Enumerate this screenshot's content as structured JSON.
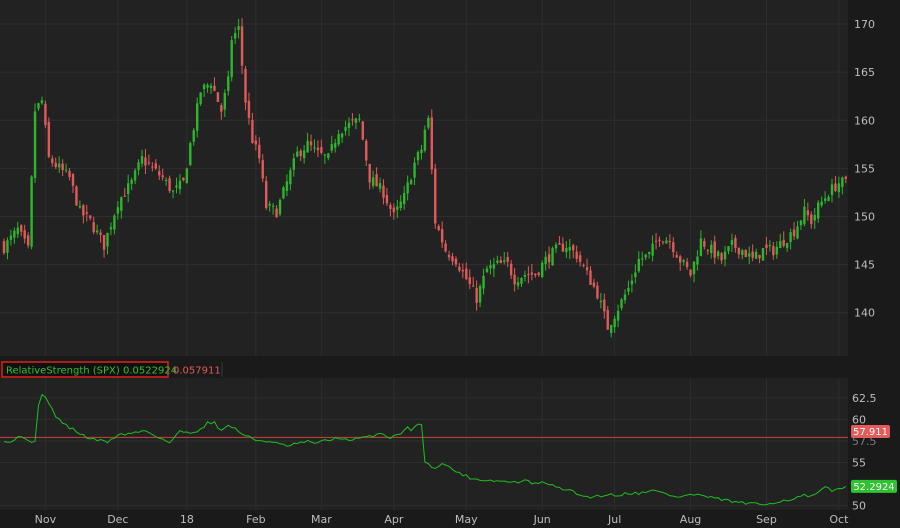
{
  "colors": {
    "background": "#1a1a1a",
    "plot_bg": "#222222",
    "grid": "#2e2e2e",
    "axis_text": "#bdbdbd",
    "up": "#2db52d",
    "down": "#e05a5a",
    "study_line": "#1fbf1f",
    "ref_line": "#c9433f",
    "header_border": "#e0201c"
  },
  "chart_data": [
    {
      "type": "candlestick",
      "ylim": [
        135.5,
        172.5
      ],
      "y_ticks": [
        "140",
        "145",
        "150",
        "155",
        "160",
        "165",
        "170"
      ],
      "y_tick_values": [
        140,
        145,
        150,
        155,
        160,
        165,
        170
      ],
      "x_ticks": [
        "Nov",
        "Dec",
        "18",
        "Feb",
        "Mar",
        "Apr",
        "May",
        "Jun",
        "Jul",
        "Aug",
        "Sep",
        "Oct"
      ],
      "x_tick_index": [
        12,
        33,
        53,
        73,
        92,
        113,
        134,
        156,
        177,
        199,
        221,
        242
      ],
      "anchors": [
        [
          0,
          146.8
        ],
        [
          4,
          148.6
        ],
        [
          7,
          146.5
        ],
        [
          9,
          161
        ],
        [
          11,
          162
        ],
        [
          13,
          156
        ],
        [
          16,
          155
        ],
        [
          19,
          154
        ],
        [
          22,
          150.5
        ],
        [
          25,
          149.5
        ],
        [
          29,
          147
        ],
        [
          33,
          151.5
        ],
        [
          37,
          153.5
        ],
        [
          40,
          156
        ],
        [
          43,
          155
        ],
        [
          46,
          154
        ],
        [
          49,
          152.5
        ],
        [
          52,
          153.5
        ],
        [
          54,
          157.5
        ],
        [
          57,
          163
        ],
        [
          60,
          164
        ],
        [
          63,
          161
        ],
        [
          65,
          164
        ],
        [
          66,
          168.5
        ],
        [
          68,
          169.5
        ],
        [
          70,
          162
        ],
        [
          72,
          158
        ],
        [
          74,
          156
        ],
        [
          76,
          151
        ],
        [
          79,
          150.5
        ],
        [
          82,
          153.5
        ],
        [
          85,
          156.5
        ],
        [
          88,
          157.5
        ],
        [
          91,
          156.5
        ],
        [
          94,
          156
        ],
        [
          97,
          159
        ],
        [
          100,
          159.5
        ],
        [
          103,
          160
        ],
        [
          106,
          154
        ],
        [
          110,
          152.5
        ],
        [
          113,
          150
        ],
        [
          116,
          152
        ],
        [
          119,
          155.5
        ],
        [
          121,
          157
        ],
        [
          122,
          159
        ],
        [
          123,
          160
        ],
        [
          125,
          149.5
        ],
        [
          128,
          146.5
        ],
        [
          131,
          145.5
        ],
        [
          134,
          143.5
        ],
        [
          137,
          141.5
        ],
        [
          140,
          144.5
        ],
        [
          143,
          145
        ],
        [
          146,
          145
        ],
        [
          148,
          143.5
        ],
        [
          151,
          144
        ],
        [
          154,
          144
        ],
        [
          157,
          145.5
        ],
        [
          160,
          146.5
        ],
        [
          163,
          147
        ],
        [
          166,
          146
        ],
        [
          169,
          144
        ],
        [
          172,
          142
        ],
        [
          175,
          138.5
        ],
        [
          178,
          140.5
        ],
        [
          181,
          142.5
        ],
        [
          184,
          145.5
        ],
        [
          187,
          146
        ],
        [
          190,
          148
        ],
        [
          193,
          147.5
        ],
        [
          196,
          145.5
        ],
        [
          199,
          144
        ],
        [
          202,
          147.5
        ],
        [
          205,
          146.5
        ],
        [
          208,
          145.5
        ],
        [
          211,
          147
        ],
        [
          214,
          146.5
        ],
        [
          217,
          145.5
        ],
        [
          220,
          146.5
        ],
        [
          223,
          146.5
        ],
        [
          226,
          147.5
        ],
        [
          229,
          148.5
        ],
        [
          232,
          150.5
        ],
        [
          234,
          149.5
        ],
        [
          236,
          151
        ],
        [
          239,
          152.5
        ],
        [
          242,
          153.5
        ],
        [
          244,
          153.5
        ]
      ]
    },
    {
      "type": "line",
      "name": "RelativeStrength (SPX)",
      "value": "0.0522924",
      "ref_value": "0.057911",
      "ylim": [
        49.5,
        64.8
      ],
      "y_ticks": [
        "50",
        "55",
        "57.5",
        "60",
        "62.5"
      ],
      "y_tick_values": [
        50,
        55,
        57.5,
        60,
        62.5
      ],
      "ref_line": 57.911,
      "last_label": "52.2924",
      "ref_label": "57.911",
      "anchors": [
        [
          0,
          57.6
        ],
        [
          2,
          57.4
        ],
        [
          4,
          58.0
        ],
        [
          7,
          57.7
        ],
        [
          9,
          57.3
        ],
        [
          10,
          61.5
        ],
        [
          11,
          63
        ],
        [
          13,
          62
        ],
        [
          15,
          60.3
        ],
        [
          18,
          59.3
        ],
        [
          21,
          58.6
        ],
        [
          24,
          57.9
        ],
        [
          27,
          57.6
        ],
        [
          30,
          57.4
        ],
        [
          33,
          58.2
        ],
        [
          37,
          58.4
        ],
        [
          41,
          58.7
        ],
        [
          45,
          57.9
        ],
        [
          48,
          57.3
        ],
        [
          51,
          58.6
        ],
        [
          54,
          58.5
        ],
        [
          57,
          58.8
        ],
        [
          59,
          59.6
        ],
        [
          61,
          59.7
        ],
        [
          63,
          58.6
        ],
        [
          65,
          59.4
        ],
        [
          67,
          58.9
        ],
        [
          70,
          58.1
        ],
        [
          73,
          57.6
        ],
        [
          76,
          57.5
        ],
        [
          79,
          57.2
        ],
        [
          82,
          56.9
        ],
        [
          85,
          57.2
        ],
        [
          88,
          57.4
        ],
        [
          91,
          57.3
        ],
        [
          94,
          57.6
        ],
        [
          97,
          57.9
        ],
        [
          100,
          57.5
        ],
        [
          103,
          57.8
        ],
        [
          106,
          58.0
        ],
        [
          109,
          58.4
        ],
        [
          112,
          57.9
        ],
        [
          114,
          58.3
        ],
        [
          116,
          58.6
        ],
        [
          117,
          59.1
        ],
        [
          118,
          58.8
        ],
        [
          119,
          59.3
        ],
        [
          121,
          59.4
        ],
        [
          122,
          55.2
        ],
        [
          124,
          54.3
        ],
        [
          127,
          54.9
        ],
        [
          130,
          54.2
        ],
        [
          133,
          53.6
        ],
        [
          136,
          53.1
        ],
        [
          139,
          53.0
        ],
        [
          142,
          52.9
        ],
        [
          145,
          52.8
        ],
        [
          148,
          52.7
        ],
        [
          151,
          52.9
        ],
        [
          154,
          52.5
        ],
        [
          157,
          52.7
        ],
        [
          160,
          52.1
        ],
        [
          163,
          51.9
        ],
        [
          166,
          51.4
        ],
        [
          169,
          51.0
        ],
        [
          172,
          51.1
        ],
        [
          175,
          51.3
        ],
        [
          178,
          51.2
        ],
        [
          181,
          51.5
        ],
        [
          184,
          51.4
        ],
        [
          187,
          51.8
        ],
        [
          190,
          51.6
        ],
        [
          193,
          51.2
        ],
        [
          196,
          51.0
        ],
        [
          199,
          51.3
        ],
        [
          202,
          51.2
        ],
        [
          205,
          50.9
        ],
        [
          208,
          50.7
        ],
        [
          211,
          50.5
        ],
        [
          214,
          50.3
        ],
        [
          217,
          50.2
        ],
        [
          220,
          50.1
        ],
        [
          223,
          50.4
        ],
        [
          226,
          50.6
        ],
        [
          229,
          50.8
        ],
        [
          232,
          51.2
        ],
        [
          234,
          51.0
        ],
        [
          236,
          51.5
        ],
        [
          238,
          52.1
        ],
        [
          240,
          51.7
        ],
        [
          242,
          52.0
        ],
        [
          244,
          52.3
        ]
      ]
    }
  ]
}
